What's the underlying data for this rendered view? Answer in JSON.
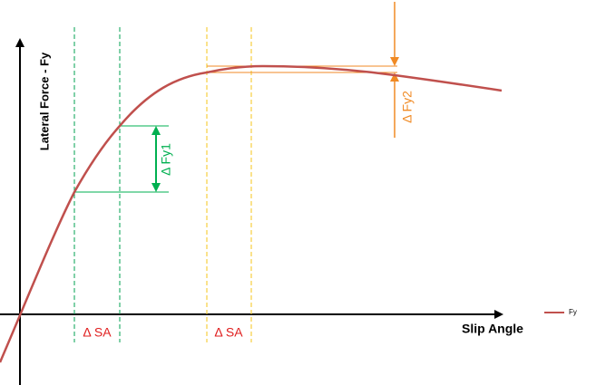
{
  "axes": {
    "y_label": "Lateral Force - Fy",
    "x_label": "Slip Angle"
  },
  "annotations": {
    "delta_fy1": "Δ Fy1",
    "delta_fy2": "Δ Fy2",
    "delta_sa_1": "Δ SA",
    "delta_sa_2": "Δ SA"
  },
  "legend": {
    "label": "Fy"
  }
}
